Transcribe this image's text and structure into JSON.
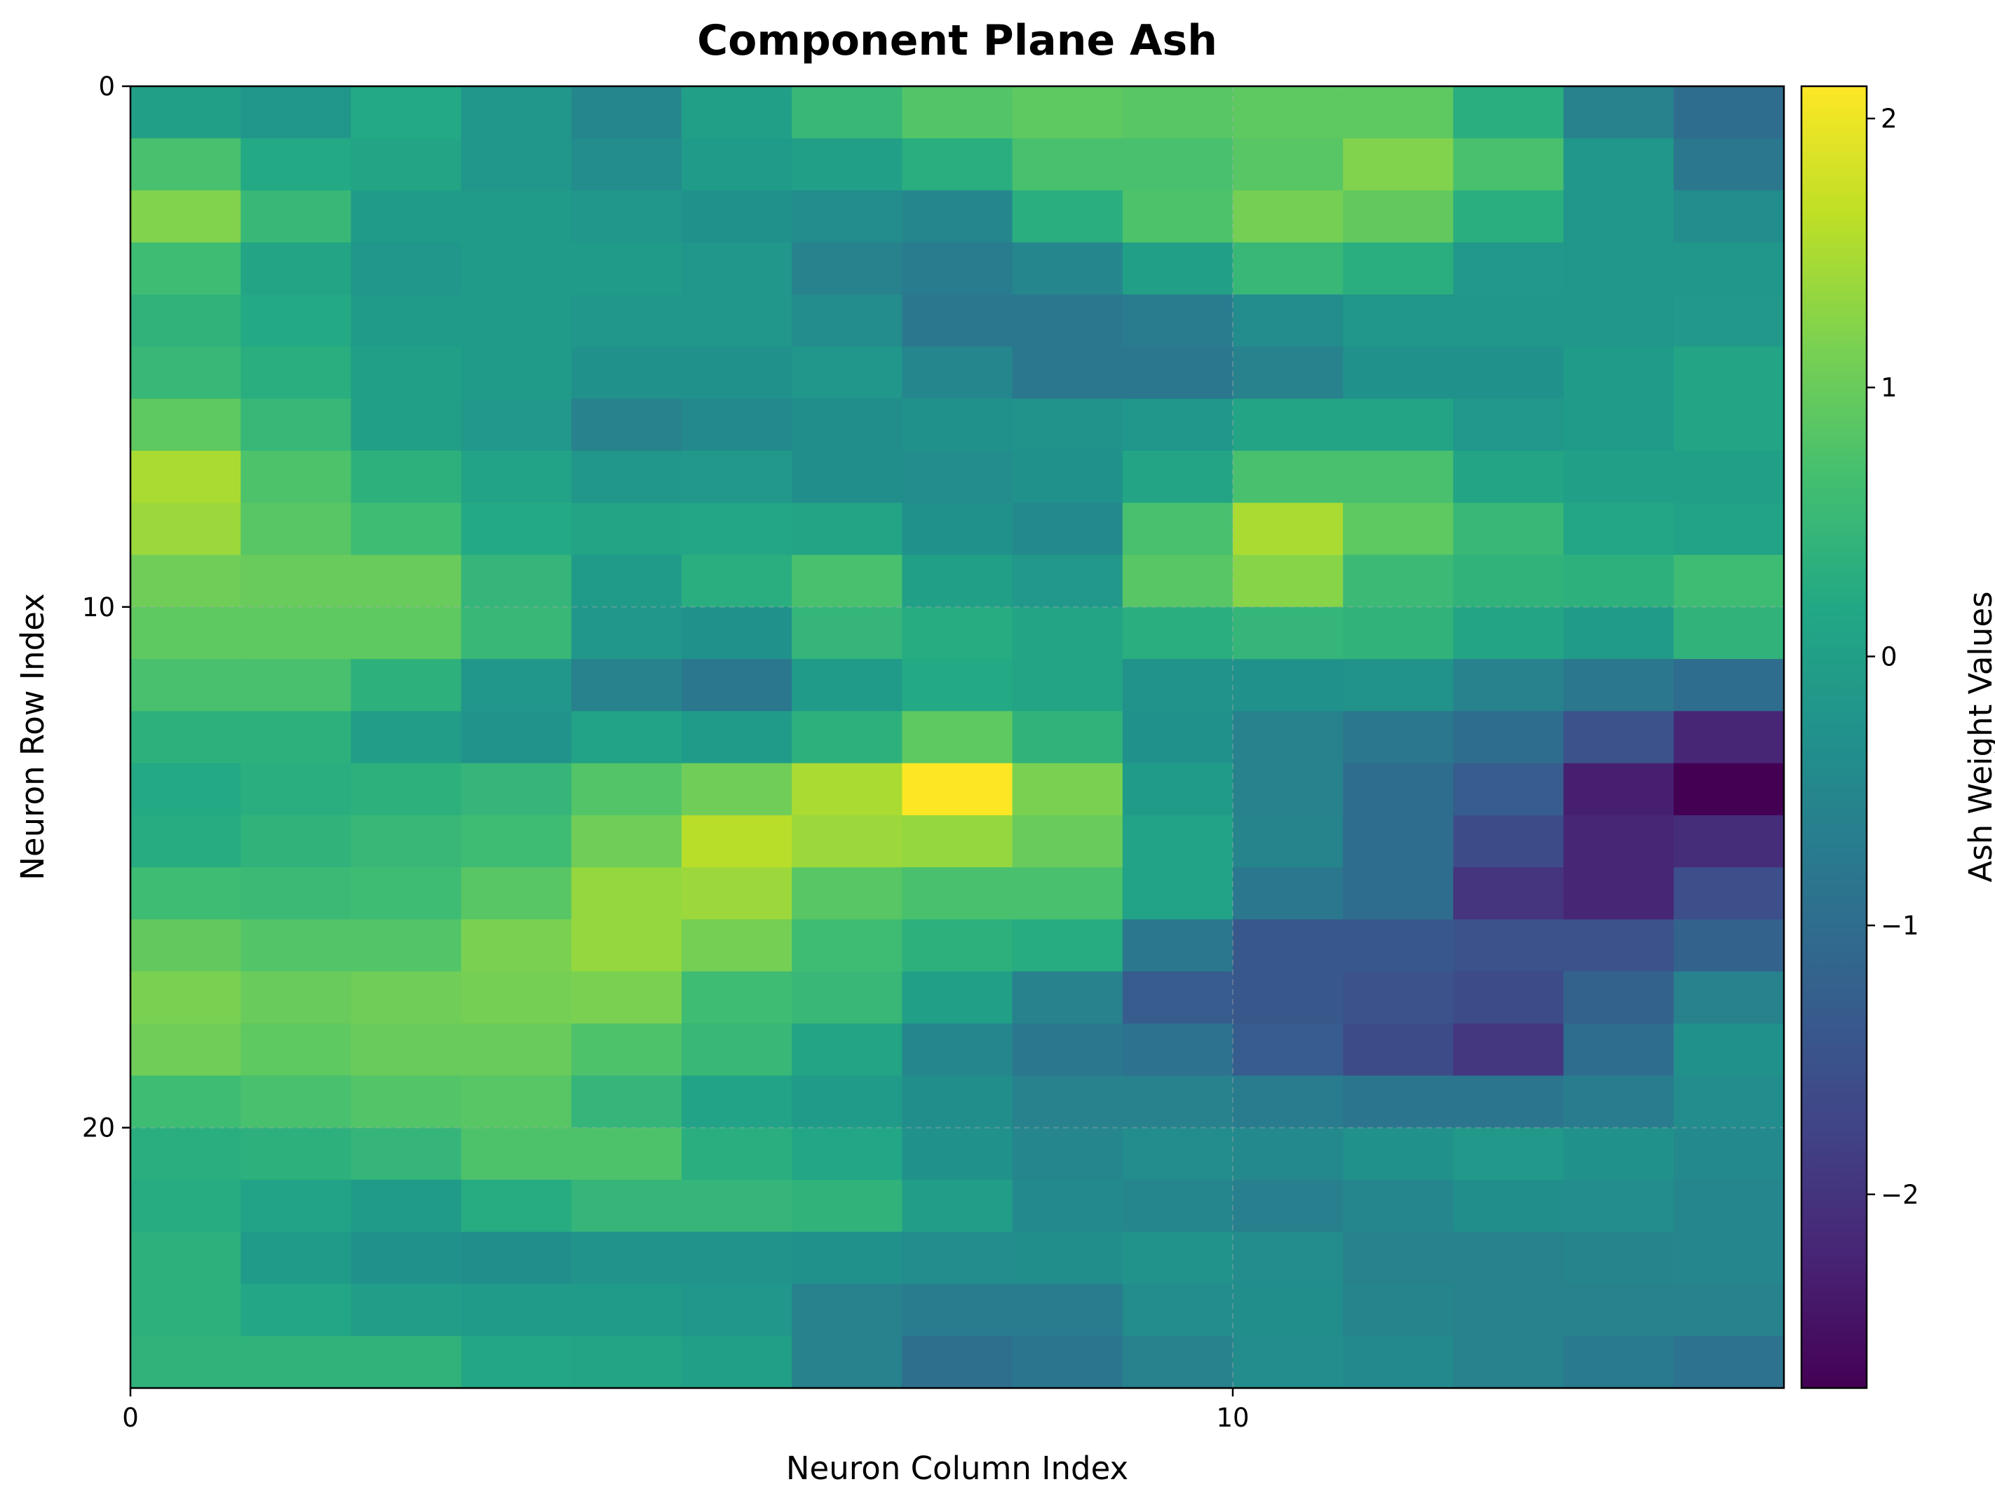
{
  "chart_data": {
    "type": "heatmap",
    "title": "Component Plane Ash",
    "xlabel": "Neuron Column Index",
    "ylabel": "Neuron Row Index",
    "colorbar_label": "Ash Weight Values",
    "colormap": "viridis",
    "vmin": -2.72,
    "vmax": 2.12,
    "xlim": [
      0,
      15
    ],
    "ylim": [
      25,
      0
    ],
    "x_ticks": [
      0,
      10
    ],
    "y_ticks": [
      0,
      10,
      20
    ],
    "colorbar_ticks": [
      {
        "value": 2,
        "label": "2"
      },
      {
        "value": 1,
        "label": "1"
      },
      {
        "value": 0,
        "label": "0"
      },
      {
        "value": -1,
        "label": "−1"
      },
      {
        "value": -2,
        "label": "−2"
      }
    ],
    "grid": true,
    "cells": [
      [
        0.0,
        -0.2,
        0.2,
        -0.2,
        -0.5,
        0.0,
        0.5,
        0.8,
        0.9,
        0.85,
        0.9,
        0.9,
        0.3,
        -0.6,
        -1.0
      ],
      [
        0.7,
        0.2,
        0.1,
        -0.2,
        -0.4,
        -0.1,
        0.0,
        0.3,
        0.7,
        0.7,
        0.85,
        1.2,
        0.7,
        -0.2,
        -0.8
      ],
      [
        1.2,
        0.5,
        -0.1,
        -0.1,
        -0.2,
        -0.3,
        -0.4,
        -0.5,
        0.3,
        0.75,
        1.1,
        0.95,
        0.3,
        -0.2,
        -0.4
      ],
      [
        0.6,
        0.1,
        -0.2,
        -0.1,
        -0.1,
        -0.2,
        -0.6,
        -0.7,
        -0.5,
        0.0,
        0.5,
        0.3,
        -0.15,
        -0.2,
        -0.2
      ],
      [
        0.4,
        0.2,
        -0.1,
        -0.1,
        -0.2,
        -0.2,
        -0.4,
        -0.8,
        -0.8,
        -0.7,
        -0.4,
        -0.2,
        -0.2,
        -0.2,
        -0.15
      ],
      [
        0.5,
        0.3,
        0.0,
        -0.1,
        -0.3,
        -0.3,
        -0.2,
        -0.5,
        -0.8,
        -0.8,
        -0.6,
        -0.3,
        -0.3,
        -0.1,
        0.1
      ],
      [
        0.9,
        0.5,
        0.0,
        -0.15,
        -0.6,
        -0.45,
        -0.35,
        -0.3,
        -0.25,
        -0.2,
        0.1,
        0.1,
        -0.15,
        -0.1,
        0.1
      ],
      [
        1.5,
        0.75,
        0.35,
        0.05,
        -0.2,
        -0.15,
        -0.35,
        -0.4,
        -0.3,
        0.1,
        0.7,
        0.7,
        0.1,
        0.0,
        0.0
      ],
      [
        1.4,
        0.85,
        0.6,
        0.2,
        0.1,
        0.15,
        0.1,
        -0.3,
        -0.45,
        0.7,
        1.5,
        0.9,
        0.5,
        0.15,
        0.05
      ],
      [
        1.05,
        1.0,
        1.0,
        0.45,
        -0.1,
        0.3,
        0.7,
        0.0,
        -0.15,
        0.85,
        1.25,
        0.55,
        0.4,
        0.35,
        0.6
      ],
      [
        0.9,
        0.9,
        0.9,
        0.5,
        -0.2,
        -0.3,
        0.45,
        0.25,
        0.1,
        0.3,
        0.45,
        0.4,
        0.1,
        -0.1,
        0.4
      ],
      [
        0.7,
        0.7,
        0.35,
        -0.2,
        -0.6,
        -0.8,
        -0.1,
        0.2,
        0.1,
        -0.25,
        -0.3,
        -0.25,
        -0.6,
        -0.8,
        -1.0
      ],
      [
        0.35,
        0.35,
        -0.05,
        -0.25,
        0.05,
        -0.1,
        0.35,
        0.9,
        0.4,
        -0.3,
        -0.6,
        -0.8,
        -1.0,
        -1.5,
        -2.2
      ],
      [
        0.2,
        0.3,
        0.35,
        0.45,
        0.8,
        1.05,
        1.5,
        2.12,
        1.15,
        -0.1,
        -0.6,
        -1.0,
        -1.3,
        -2.3,
        -2.72
      ],
      [
        0.25,
        0.4,
        0.5,
        0.6,
        1.05,
        1.6,
        1.4,
        1.35,
        1.0,
        0.05,
        -0.55,
        -1.0,
        -1.6,
        -2.2,
        -2.1
      ],
      [
        0.6,
        0.55,
        0.6,
        0.85,
        1.35,
        1.4,
        0.85,
        0.7,
        0.7,
        0.05,
        -0.8,
        -1.0,
        -2.0,
        -2.2,
        -1.55
      ],
      [
        0.95,
        0.8,
        0.8,
        1.15,
        1.35,
        1.1,
        0.6,
        0.35,
        0.25,
        -0.8,
        -1.4,
        -1.4,
        -1.5,
        -1.5,
        -1.2
      ],
      [
        1.15,
        1.0,
        1.05,
        1.1,
        1.15,
        0.6,
        0.5,
        0.0,
        -0.6,
        -1.3,
        -1.4,
        -1.5,
        -1.6,
        -1.2,
        -0.6
      ],
      [
        1.05,
        0.9,
        1.0,
        1.0,
        0.75,
        0.5,
        0.1,
        -0.5,
        -0.8,
        -0.9,
        -1.3,
        -1.6,
        -1.95,
        -1.0,
        -0.3
      ],
      [
        0.6,
        0.7,
        0.8,
        0.85,
        0.45,
        0.05,
        -0.1,
        -0.35,
        -0.6,
        -0.6,
        -0.7,
        -0.85,
        -0.85,
        -0.7,
        -0.4
      ],
      [
        0.3,
        0.35,
        0.45,
        0.75,
        0.75,
        0.3,
        0.15,
        -0.3,
        -0.5,
        -0.4,
        -0.45,
        -0.3,
        -0.15,
        -0.3,
        -0.45
      ],
      [
        0.25,
        0.05,
        -0.1,
        0.25,
        0.45,
        0.45,
        0.4,
        -0.05,
        -0.45,
        -0.5,
        -0.65,
        -0.5,
        -0.35,
        -0.4,
        -0.5
      ],
      [
        0.35,
        -0.1,
        -0.3,
        -0.35,
        -0.25,
        -0.25,
        -0.3,
        -0.4,
        -0.35,
        -0.25,
        -0.4,
        -0.6,
        -0.6,
        -0.55,
        -0.5
      ],
      [
        0.35,
        0.15,
        -0.05,
        -0.1,
        -0.1,
        -0.2,
        -0.6,
        -0.7,
        -0.7,
        -0.4,
        -0.35,
        -0.55,
        -0.6,
        -0.6,
        -0.6
      ],
      [
        0.4,
        0.4,
        0.4,
        0.15,
        0.1,
        0.0,
        -0.6,
        -0.95,
        -0.85,
        -0.6,
        -0.4,
        -0.45,
        -0.6,
        -0.75,
        -0.9
      ]
    ]
  }
}
